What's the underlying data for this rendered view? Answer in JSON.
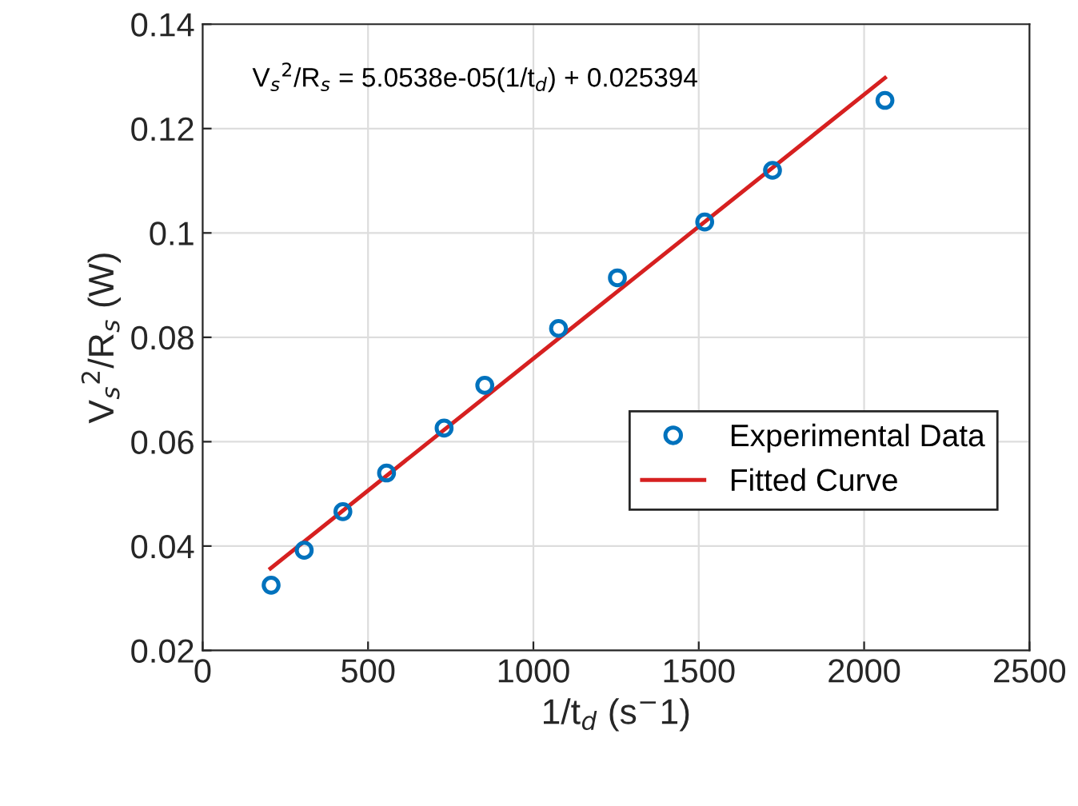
{
  "chart_data": {
    "type": "scatter",
    "xlabel": "1/t$_{d}$ (s$^{−}$1)",
    "ylabel": "V$_{s}$$^{2}$/R$_{s}$ (W)",
    "annotations": [
      "V$_{s}$$^{2}$/R$_{s}$ = 5.0538e-05(1/t$_{d}$) + 0.025394"
    ],
    "series": [
      {
        "name": "Experimental Data",
        "color": "#0072bd",
        "marker": "circle",
        "x": [
          207,
          307,
          424,
          556,
          730,
          853,
          1076,
          1254,
          1518,
          1723,
          2063
        ],
        "values": [
          0.0325,
          0.0392,
          0.0466,
          0.054,
          0.0626,
          0.0708,
          0.0817,
          0.0914,
          0.1021,
          0.112,
          0.1254
        ]
      },
      {
        "name": "Fitted Curve",
        "type": "line",
        "color": "#d62020",
        "marker": "none",
        "line_style": "solid",
        "x": [
          205,
          2063
        ],
        "values": [
          0.0357,
          0.1297
        ]
      }
    ],
    "xlim": [
      0,
      2500
    ],
    "xticks": [
      0,
      500,
      1000,
      1500,
      2000,
      2500
    ],
    "ylim": [
      0.02,
      0.14
    ],
    "yticks": [
      0.02,
      0.04,
      0.06,
      0.08,
      0.1,
      0.12,
      0.14
    ],
    "grid": true,
    "legend": "bottom right"
  }
}
